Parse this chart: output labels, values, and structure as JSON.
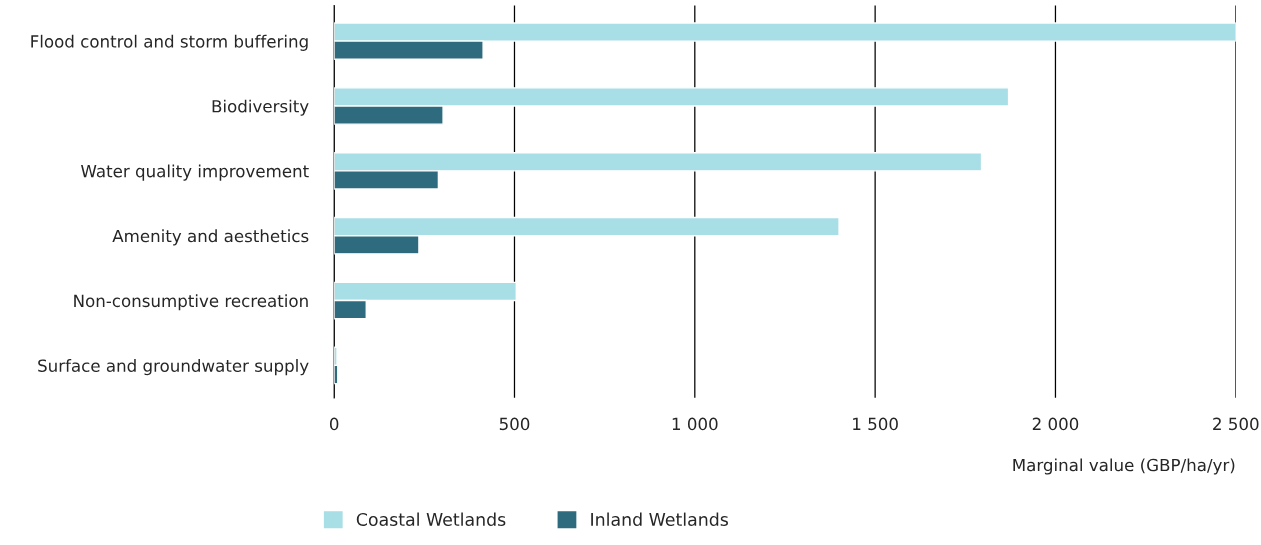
{
  "chart_data": {
    "type": "bar",
    "orientation": "horizontal",
    "categories": [
      "Flood control and storm buffering",
      "Biodiversity",
      "Water quality improvement",
      "Amenity and aesthetics",
      "Non-consumptive recreation",
      "Surface and groundwater supply"
    ],
    "series": [
      {
        "name": "Coastal Wetlands",
        "color": "#a8dee6",
        "values": [
          2500,
          1870,
          1795,
          1400,
          505,
          8
        ]
      },
      {
        "name": "Inland Wetlands",
        "color": "#2e6b7e",
        "values": [
          413,
          302,
          289,
          235,
          89,
          10
        ]
      }
    ],
    "xlabel": "Marginal value (GBP/ha/yr)",
    "xlim": [
      0,
      2500
    ],
    "xticks": [
      0,
      500,
      {
        "value": 1000,
        "label": "1 000"
      },
      {
        "value": 1500,
        "label": "1 500"
      },
      {
        "value": 2000,
        "label": "2 000"
      },
      {
        "value": 2500,
        "label": "2 500"
      }
    ],
    "grid": "x",
    "legend": "bottom left"
  }
}
